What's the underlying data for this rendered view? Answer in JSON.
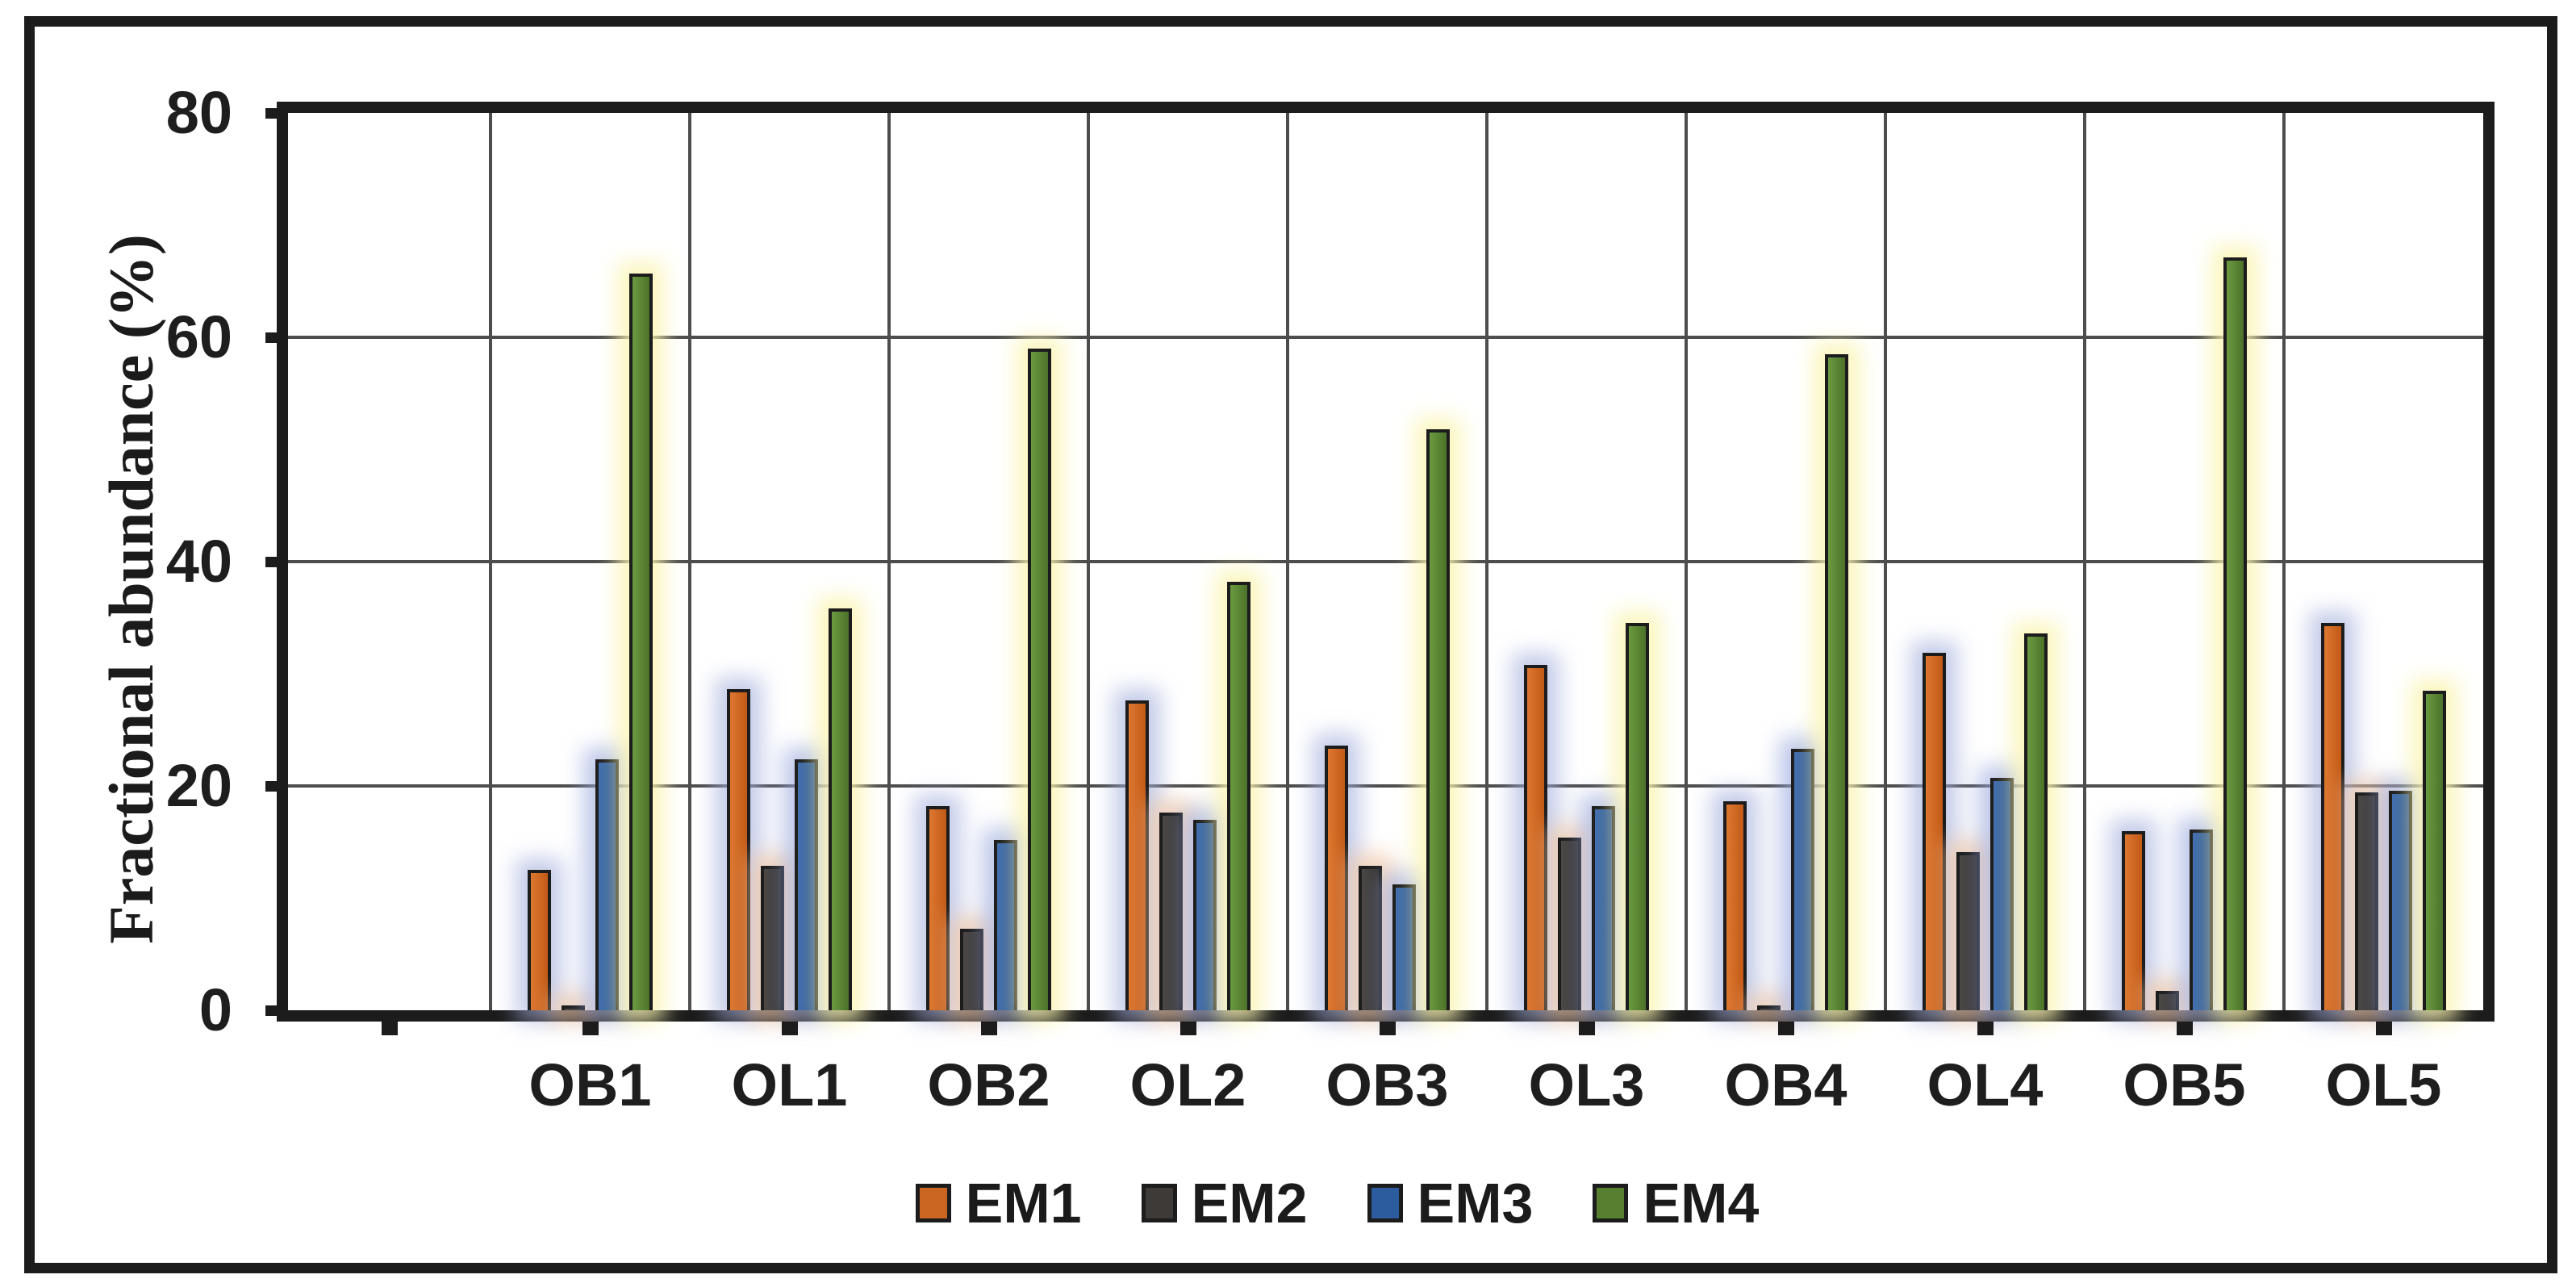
{
  "chart_data": {
    "type": "bar",
    "title": "",
    "xlabel": "",
    "ylabel": "Fractional abundance (%)",
    "ylim": [
      0,
      80
    ],
    "yticks": [
      0,
      20,
      40,
      60,
      80
    ],
    "grid": true,
    "legend_position": "bottom",
    "categories": [
      "OB1",
      "OL1",
      "OB2",
      "OL2",
      "OB3",
      "OL3",
      "OB4",
      "OL4",
      "OB5",
      "OL5"
    ],
    "series": [
      {
        "name": "EM1",
        "color": "#cb6522",
        "gradient": [
          "#dd7730",
          "#c25a17"
        ],
        "glow": "rgba(162,173,220,0.65)",
        "values": [
          12.5,
          28.6,
          18.2,
          27.6,
          23.6,
          30.8,
          18.6,
          31.9,
          16.0,
          34.5
        ]
      },
      {
        "name": "EM2",
        "color": "#3e3a37",
        "gradient": [
          "#4b4744",
          "#322f2c"
        ],
        "glow": "rgba(244,198,160,0.70)",
        "values": [
          0.4,
          12.9,
          7.3,
          17.6,
          12.9,
          15.4,
          0.4,
          14.1,
          1.7,
          19.4
        ]
      },
      {
        "name": "EM3",
        "color": "#2d5c9e",
        "gradient": [
          "#3f6db0",
          "#27528e"
        ],
        "glow": "rgba(152,168,221,0.65)",
        "values": [
          22.4,
          22.4,
          15.2,
          17.0,
          11.2,
          18.2,
          23.3,
          20.7,
          16.1,
          19.6
        ]
      },
      {
        "name": "EM4",
        "color": "#567f2f",
        "gradient": [
          "#6b9a40",
          "#4c7229"
        ],
        "glow": "rgba(250,245,178,0.85)",
        "values": [
          65.7,
          35.8,
          59.0,
          38.2,
          51.8,
          34.5,
          58.5,
          33.6,
          67.1,
          28.5
        ]
      }
    ]
  },
  "colors": {
    "axis": "#1c1c1c",
    "gridline": "#4d4d4d",
    "text": "#1e1e1e",
    "background": "#ffffff"
  }
}
